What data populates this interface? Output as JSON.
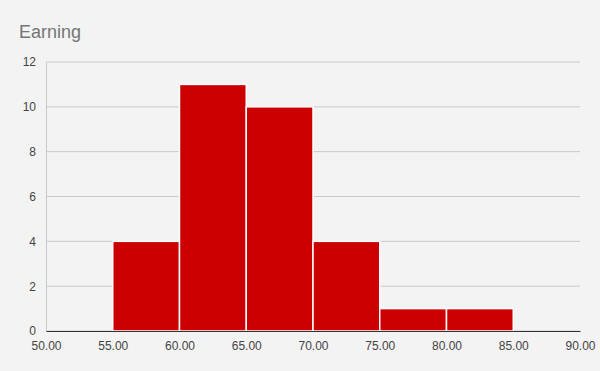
{
  "chart_data": {
    "type": "histogram",
    "title": "Earning",
    "bins": [
      55,
      60,
      65,
      70,
      75,
      80,
      85
    ],
    "values": [
      4,
      11,
      10,
      4,
      1,
      1
    ],
    "color": "#cc0000",
    "xlim": [
      50,
      90
    ],
    "xticks": [
      {
        "value": 50,
        "label": "50.00"
      },
      {
        "value": 55,
        "label": "55.00"
      },
      {
        "value": 60,
        "label": "60.00"
      },
      {
        "value": 65,
        "label": "65.00"
      },
      {
        "value": 70,
        "label": "70.00"
      },
      {
        "value": 75,
        "label": "75.00"
      },
      {
        "value": 80,
        "label": "80.00"
      },
      {
        "value": 85,
        "label": "85.00"
      },
      {
        "value": 90,
        "label": "90.00"
      }
    ],
    "ylim": [
      0,
      12
    ],
    "yticks": [
      0,
      2,
      4,
      6,
      8,
      10,
      12
    ],
    "grid": true
  }
}
